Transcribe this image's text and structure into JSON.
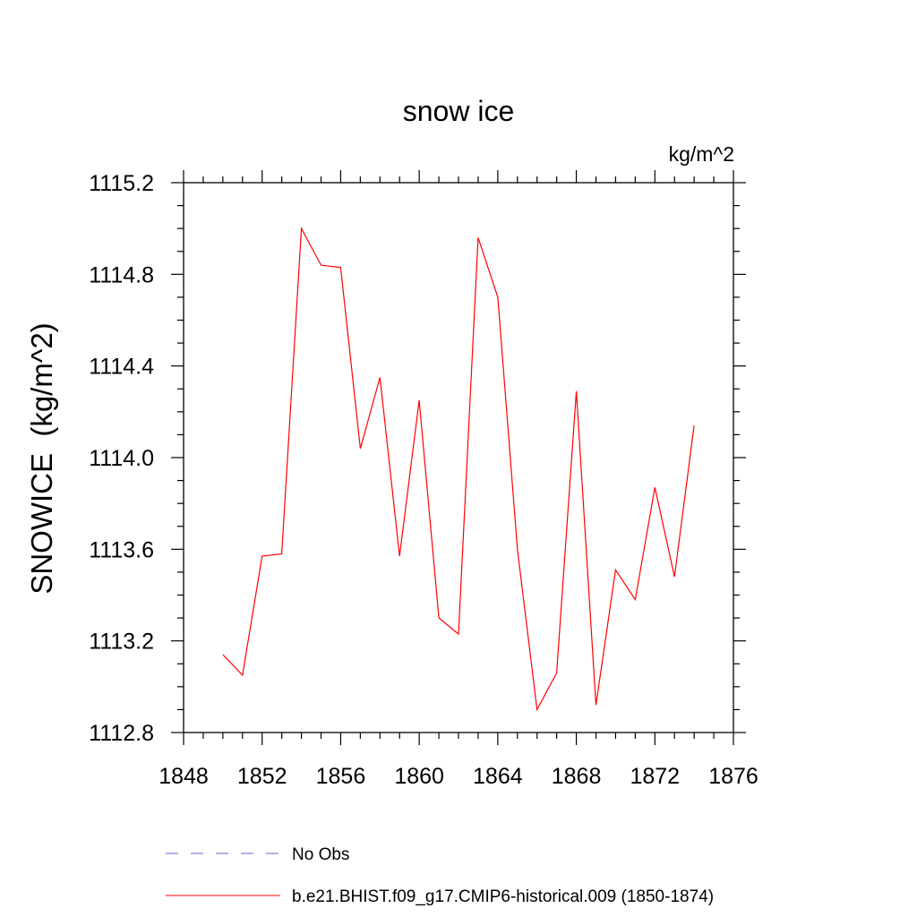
{
  "chart_data": {
    "type": "line",
    "title": "snow ice",
    "units_label": "kg/m^2",
    "ylabel": "SNOWICE  (kg/m^2)",
    "xlabel": "",
    "xlim": [
      1848,
      1876
    ],
    "ylim": [
      1112.8,
      1115.2
    ],
    "x_ticks": [
      "1848",
      "1852",
      "1856",
      "1860",
      "1864",
      "1868",
      "1872",
      "1876"
    ],
    "y_ticks": [
      "1112.8",
      "1113.2",
      "1113.6",
      "1114.0",
      "1114.4",
      "1114.8",
      "1115.2"
    ],
    "x_minor_step": 1,
    "y_minor_step": 0.1,
    "grid": false,
    "legend_position": "bottom",
    "series": [
      {
        "name": "No Obs",
        "color": "#6666cc",
        "style": "dashed",
        "x": [],
        "y": []
      },
      {
        "name": "b.e21.BHIST.f09_g17.CMIP6-historical.009 (1850-1874)",
        "color": "#ff0000",
        "style": "solid",
        "x": [
          1850,
          1851,
          1852,
          1853,
          1854,
          1855,
          1856,
          1857,
          1858,
          1859,
          1860,
          1861,
          1862,
          1863,
          1864,
          1865,
          1866,
          1867,
          1868,
          1869,
          1870,
          1871,
          1872,
          1873,
          1874
        ],
        "y": [
          1113.14,
          1113.05,
          1113.57,
          1113.58,
          1115.0,
          1114.84,
          1114.83,
          1114.04,
          1114.35,
          1113.57,
          1114.25,
          1113.3,
          1113.23,
          1114.96,
          1114.7,
          1113.6,
          1112.9,
          1113.06,
          1114.29,
          1112.92,
          1113.51,
          1113.38,
          1113.87,
          1113.48,
          1114.14
        ]
      }
    ]
  }
}
